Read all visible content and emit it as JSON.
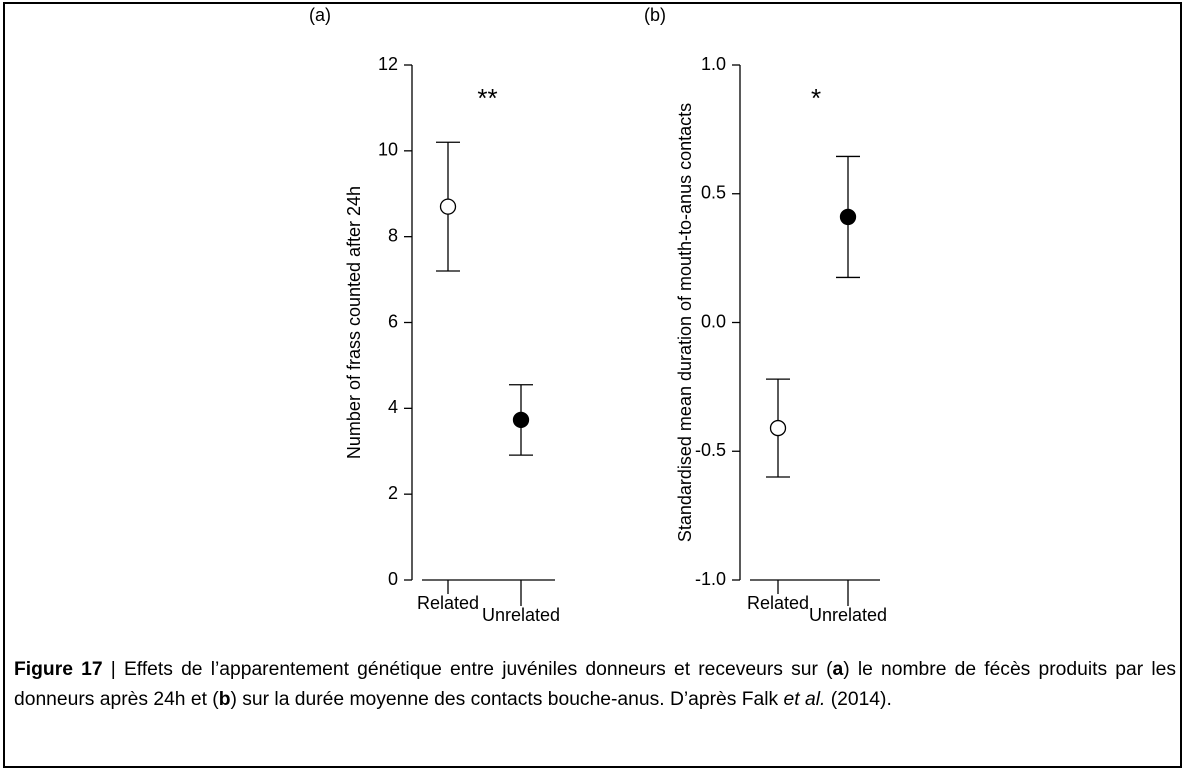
{
  "chart_data": [
    {
      "type": "errorbar",
      "panel_label": "(a)",
      "annotation": "**",
      "ylabel": "Number of frass counted after 24h",
      "categories": [
        "Related",
        "Unrelated"
      ],
      "values": [
        8.7,
        3.73
      ],
      "errors": [
        1.5,
        0.82
      ],
      "marker_colors": [
        "#ffffff",
        "#000000"
      ],
      "ylim": [
        0,
        12
      ],
      "yticks": [
        0,
        2,
        4,
        6,
        8,
        10,
        12
      ]
    },
    {
      "type": "errorbar",
      "panel_label": "(b)",
      "annotation": "*",
      "ylabel": "Standardised mean duration of mouth-to-anus contacts",
      "categories": [
        "Related",
        "Unrelated"
      ],
      "values": [
        -0.41,
        0.41
      ],
      "errors": [
        0.19,
        0.235
      ],
      "marker_colors": [
        "#ffffff",
        "#000000"
      ],
      "ylim": [
        -1,
        1
      ],
      "yticks": [
        {
          "value": -1,
          "label": "-1.0"
        },
        -0.5,
        {
          "value": 0,
          "label": "0.0"
        },
        0.5,
        {
          "value": 1,
          "label": "1.0"
        }
      ]
    }
  ],
  "caption": [
    {
      "text": "Figure 17",
      "bold": true
    },
    {
      "text": " | Effets de l’apparentement génétique entre juvéniles donneurs et receveurs sur ("
    },
    {
      "text": "a",
      "bold": true
    },
    {
      "text": ") le nombre de fécès produits par les donneurs après 24h et ("
    },
    {
      "text": "b",
      "bold": true
    },
    {
      "text": ") sur la durée moyenne des contacts bouche-anus. D’après Falk "
    },
    {
      "text": "et al.",
      "italic": true
    },
    {
      "text": " (2014)."
    }
  ]
}
